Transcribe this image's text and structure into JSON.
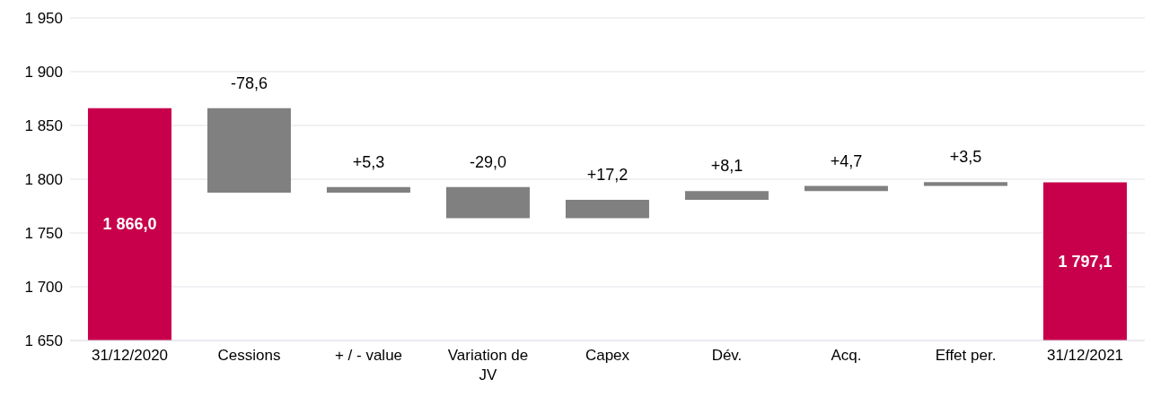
{
  "chart_data": {
    "type": "bar",
    "categories": [
      "31/12/2020",
      "Cessions",
      "+ / - value",
      "Variation de JV",
      "Capex",
      "Dév.",
      "Acq.",
      "Effet per.",
      "31/12/2021"
    ],
    "values": [
      1866.0,
      -78.6,
      5.3,
      -29.0,
      17.2,
      8.1,
      4.7,
      3.5,
      1797.1
    ],
    "base": [
      null,
      1866.0,
      1787.4,
      1792.7,
      1763.7,
      1780.9,
      1789.0,
      1793.7,
      null
    ],
    "colors": [
      "#c8004b",
      "#808080",
      "#808080",
      "#808080",
      "#808080",
      "#808080",
      "#808080",
      "#808080",
      "#c8004b"
    ],
    "value_labels": [
      "1 866,0",
      "-78,6",
      "+5,3",
      "-29,0",
      "+17,2",
      "+8,1",
      "+4,7",
      "+3,5",
      "1 797,1"
    ],
    "ylim": [
      1650,
      1950
    ],
    "yticks": [
      {
        "value": 1650,
        "label": "1 650"
      },
      {
        "value": 1700,
        "label": "1 700"
      },
      {
        "value": 1750,
        "label": "1 750"
      },
      {
        "value": 1800,
        "label": "1 800"
      },
      {
        "value": 1850,
        "label": "1 850"
      },
      {
        "value": 1900,
        "label": "1 900"
      },
      {
        "value": 1950,
        "label": "1 950"
      }
    ],
    "grid": "y"
  }
}
